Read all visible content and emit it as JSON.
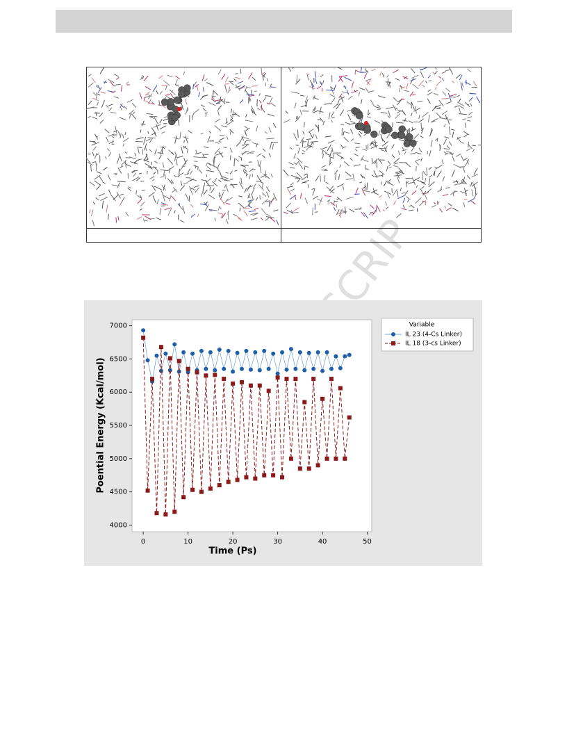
{
  "watermark": "USCRIP",
  "chart_data": {
    "type": "line",
    "xlabel": "Time (Ps)",
    "ylabel": "Poential Energy (Kcal/mol)",
    "legend_title": "Variable",
    "x": [
      0,
      1,
      2,
      3,
      4,
      5,
      6,
      7,
      8,
      9,
      10,
      11,
      12,
      13,
      14,
      15,
      16,
      17,
      18,
      19,
      20,
      21,
      22,
      23,
      24,
      25,
      26,
      27,
      28,
      29,
      30,
      31,
      32,
      33,
      34,
      35,
      36,
      37,
      38,
      39,
      40,
      41,
      42,
      43,
      44,
      45,
      46
    ],
    "series": [
      {
        "name": "IL 23 (4-Cs Linker)",
        "color": "#1f5fa8",
        "line_color": "#7aa7d6",
        "marker": "circle",
        "dashed": false,
        "values": [
          6930,
          6480,
          6160,
          6550,
          6320,
          6580,
          6330,
          6720,
          6310,
          6600,
          6300,
          6580,
          6330,
          6620,
          6350,
          6600,
          6330,
          6640,
          6350,
          6620,
          6310,
          6590,
          6350,
          6620,
          6340,
          6600,
          6330,
          6620,
          6350,
          6580,
          6280,
          6600,
          6340,
          6650,
          6350,
          6600,
          6330,
          6590,
          6350,
          6600,
          6320,
          6600,
          6350,
          6540,
          6360,
          6540,
          6560
        ]
      },
      {
        "name": "IL 18 (3-cs Linker)",
        "color": "#8b1a1a",
        "line_color": "#8b1a1a",
        "marker": "square",
        "dashed": true,
        "values": [
          6820,
          4520,
          6200,
          4180,
          6680,
          4160,
          6510,
          4200,
          6470,
          4420,
          6350,
          4530,
          6300,
          4500,
          6250,
          4550,
          6260,
          4600,
          6200,
          4650,
          6130,
          4680,
          6150,
          4720,
          6100,
          4700,
          6100,
          4750,
          6020,
          4750,
          6220,
          4720,
          6200,
          5000,
          6200,
          4850,
          5850,
          4850,
          6200,
          4900,
          5900,
          5000,
          6200,
          5000,
          6060,
          5000,
          5620
        ]
      }
    ],
    "xlim": [
      -2.5,
      51
    ],
    "ylim": [
      3900,
      7090
    ],
    "xticks": [
      0,
      10,
      20,
      30,
      40,
      50
    ],
    "yticks": [
      4000,
      4500,
      5000,
      5500,
      6000,
      6500,
      7000
    ],
    "legend": "outside-right"
  }
}
